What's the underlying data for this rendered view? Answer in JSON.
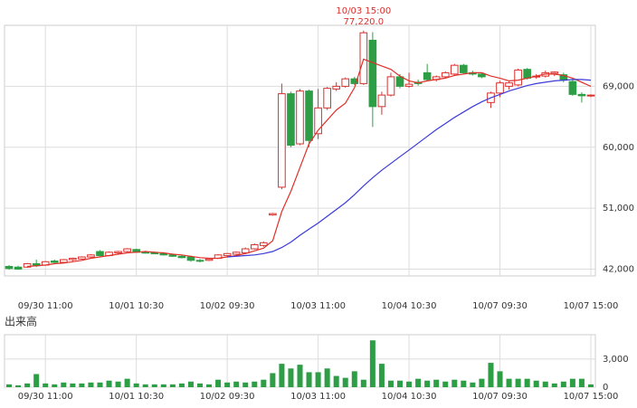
{
  "chart_data": [
    {
      "type": "candlestick",
      "categories": [
        null,
        null,
        null,
        null,
        "09/30 11:00",
        null,
        null,
        null,
        null,
        null,
        null,
        null,
        null,
        null,
        "10/01 10:30",
        null,
        null,
        null,
        null,
        null,
        null,
        null,
        null,
        null,
        "10/02 09:30",
        null,
        null,
        null,
        null,
        null,
        null,
        null,
        null,
        null,
        "10/03 11:00",
        null,
        null,
        null,
        null,
        null,
        null,
        null,
        null,
        null,
        "10/04 10:30",
        null,
        null,
        null,
        null,
        null,
        null,
        null,
        null,
        null,
        "10/07 09:30",
        null,
        null,
        null,
        null,
        null,
        null,
        null,
        null,
        null,
        "10/07 15:00"
      ],
      "open": [
        42400,
        42300,
        42300,
        42800,
        42600,
        43200,
        43000,
        43400,
        43500,
        43800,
        44600,
        44000,
        44400,
        44600,
        44900,
        44500,
        44400,
        44300,
        44100,
        43900,
        43800,
        43300,
        43300,
        43600,
        44000,
        44200,
        44400,
        45000,
        45500,
        50000,
        54100,
        67900,
        60500,
        68300,
        62000,
        65800,
        68600,
        69000,
        70100,
        69400,
        75800,
        66000,
        67700,
        70400,
        69000,
        69600,
        71000,
        70000,
        70400,
        70800,
        72100,
        71000,
        70800,
        66600,
        68000,
        69000,
        69200,
        71500,
        70400,
        70500,
        70900,
        70700,
        69700,
        67800,
        67600
      ],
      "high": [
        42600,
        42500,
        42900,
        43400,
        43200,
        43400,
        43500,
        43700,
        43900,
        44200,
        44800,
        44600,
        44700,
        45100,
        45000,
        44700,
        44600,
        44500,
        44300,
        44100,
        44000,
        43500,
        43600,
        44200,
        44400,
        44600,
        45200,
        45800,
        46100,
        50300,
        69400,
        68200,
        68600,
        68500,
        68600,
        68900,
        69600,
        70300,
        70400,
        77220,
        77000,
        68200,
        71000,
        70800,
        71000,
        70000,
        72300,
        70600,
        71200,
        72300,
        72300,
        71300,
        71000,
        68200,
        69800,
        69700,
        71600,
        71700,
        70800,
        71300,
        71200,
        71000,
        70100,
        68100,
        67800
      ],
      "low": [
        41900,
        41900,
        42200,
        42300,
        42500,
        42800,
        42900,
        43200,
        43400,
        43700,
        43900,
        43900,
        44200,
        44500,
        44400,
        44300,
        44200,
        44000,
        43800,
        43600,
        43100,
        43000,
        43200,
        43500,
        43800,
        44000,
        44300,
        44900,
        45300,
        49900,
        53800,
        60000,
        60300,
        60000,
        61200,
        65500,
        68300,
        68800,
        69200,
        69200,
        63000,
        64800,
        67500,
        68700,
        68800,
        69100,
        69800,
        69700,
        70200,
        70600,
        70900,
        70600,
        70200,
        65800,
        67400,
        68500,
        69000,
        70000,
        70100,
        70300,
        70500,
        69600,
        67600,
        66600,
        67400
      ],
      "close": [
        42100,
        42000,
        42800,
        42500,
        43100,
        43000,
        43400,
        43600,
        43800,
        44100,
        44000,
        44500,
        44600,
        45000,
        44500,
        44400,
        44300,
        44100,
        43900,
        43700,
        43300,
        43200,
        43500,
        44100,
        44300,
        44500,
        45000,
        45600,
        45900,
        50200,
        67900,
        60300,
        68300,
        61000,
        65800,
        68700,
        69000,
        70100,
        69400,
        76900,
        66000,
        67700,
        70400,
        69000,
        69300,
        69400,
        70000,
        70400,
        71000,
        72100,
        71000,
        70800,
        70400,
        68000,
        69500,
        69500,
        71400,
        70200,
        70500,
        71000,
        71100,
        69900,
        67800,
        67600,
        67700
      ],
      "up_color": "#d9302c",
      "down_color": "#2e9e46",
      "series": [
        {
          "color": "#e0302a",
          "values": [
            null,
            null,
            42400,
            42500,
            42600,
            42800,
            42900,
            43100,
            43300,
            43600,
            43800,
            44000,
            44200,
            44400,
            44500,
            44600,
            44500,
            44400,
            44200,
            44100,
            43900,
            43700,
            43600,
            43600,
            43800,
            44000,
            44300,
            44700,
            45100,
            46200,
            50500,
            53500,
            57000,
            60500,
            62500,
            64000,
            65500,
            66500,
            68800,
            73000,
            72500,
            72000,
            71500,
            70500,
            69800,
            69500,
            69800,
            70000,
            70200,
            70600,
            70800,
            71000,
            71000,
            70500,
            70200,
            69800,
            69900,
            70200,
            70500,
            70800,
            70800,
            70600,
            70200,
            69600,
            69000
          ]
        },
        {
          "color": "#3a3ad8",
          "values": [
            null,
            null,
            null,
            null,
            null,
            null,
            null,
            null,
            null,
            null,
            null,
            null,
            null,
            null,
            null,
            null,
            null,
            null,
            null,
            null,
            null,
            null,
            null,
            null,
            43800,
            43900,
            44000,
            44100,
            44300,
            44600,
            45200,
            46000,
            47000,
            47900,
            48800,
            49800,
            50800,
            51800,
            53000,
            54300,
            55500,
            56600,
            57600,
            58600,
            59600,
            60600,
            61600,
            62600,
            63500,
            64400,
            65200,
            66000,
            66700,
            67300,
            67800,
            68300,
            68700,
            69100,
            69400,
            69600,
            69800,
            69900,
            70000,
            70000,
            69900
          ]
        }
      ],
      "annotation": {
        "time": "10/03 15:00",
        "value": 77220,
        "label": "77,220.0",
        "color": "#d9302c"
      },
      "ylim": [
        41000,
        78000
      ],
      "yticks": [
        {
          "value": 42000,
          "label": "42,000"
        },
        {
          "value": 51000,
          "label": "51,000"
        },
        {
          "value": 60000,
          "label": "60,000"
        },
        {
          "value": 69000,
          "label": "69,000"
        }
      ],
      "grid": true
    },
    {
      "type": "bar",
      "title": "出来高",
      "categories": [
        null,
        null,
        null,
        null,
        "09/30 11:00",
        null,
        null,
        null,
        null,
        null,
        null,
        null,
        null,
        null,
        "10/01 10:30",
        null,
        null,
        null,
        null,
        null,
        null,
        null,
        null,
        null,
        "10/02 09:30",
        null,
        null,
        null,
        null,
        null,
        null,
        null,
        null,
        null,
        "10/03 11:00",
        null,
        null,
        null,
        null,
        null,
        null,
        null,
        null,
        null,
        "10/04 10:30",
        null,
        null,
        null,
        null,
        null,
        null,
        null,
        null,
        null,
        "10/07 09:30",
        null,
        null,
        null,
        null,
        null,
        null,
        null,
        null,
        null,
        "10/07 15:00"
      ],
      "values": [
        300,
        200,
        400,
        1400,
        400,
        300,
        500,
        400,
        400,
        500,
        500,
        700,
        600,
        900,
        400,
        300,
        300,
        300,
        300,
        400,
        600,
        400,
        300,
        800,
        500,
        600,
        500,
        600,
        800,
        1500,
        2500,
        2000,
        2400,
        1600,
        1600,
        2000,
        1200,
        1000,
        1700,
        800,
        5000,
        2500,
        700,
        700,
        600,
        900,
        700,
        800,
        600,
        800,
        700,
        500,
        900,
        2600,
        1700,
        900,
        900,
        900,
        700,
        600,
        400,
        600,
        900,
        900,
        300
      ],
      "color": "#2e9e46",
      "ylim": [
        0,
        5600
      ],
      "yticks": [
        0,
        {
          "value": 3000,
          "label": "3,000"
        }
      ],
      "grid": true
    }
  ]
}
